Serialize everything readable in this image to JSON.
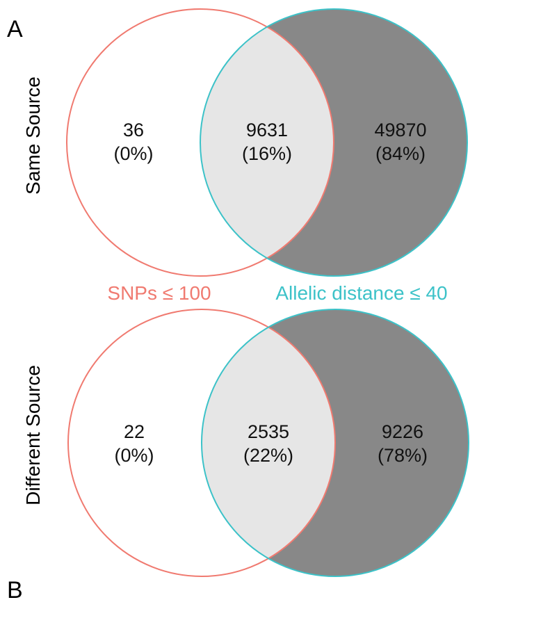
{
  "colors": {
    "set_a": "#F07A70",
    "set_b": "#3CC2C8",
    "intersection_fill": "#E6E6E6",
    "b_only_fill": "#888888",
    "a_only_fill": "#FFFFFF"
  },
  "set_labels": {
    "a": "SNPs ≤ 100",
    "b": "Allelic distance ≤ 40"
  },
  "panels": [
    {
      "panel_label": "A",
      "row_label": "Same Source",
      "a_only": {
        "count": "36",
        "pct": "(0%)"
      },
      "both": {
        "count": "9631",
        "pct": "(16%)"
      },
      "b_only": {
        "count": "49870",
        "pct": "(84%)"
      }
    },
    {
      "panel_label": "B",
      "row_label": "Different Source",
      "a_only": {
        "count": "22",
        "pct": "(0%)"
      },
      "both": {
        "count": "2535",
        "pct": "(22%)"
      },
      "b_only": {
        "count": "9226",
        "pct": "(78%)"
      }
    }
  ]
}
